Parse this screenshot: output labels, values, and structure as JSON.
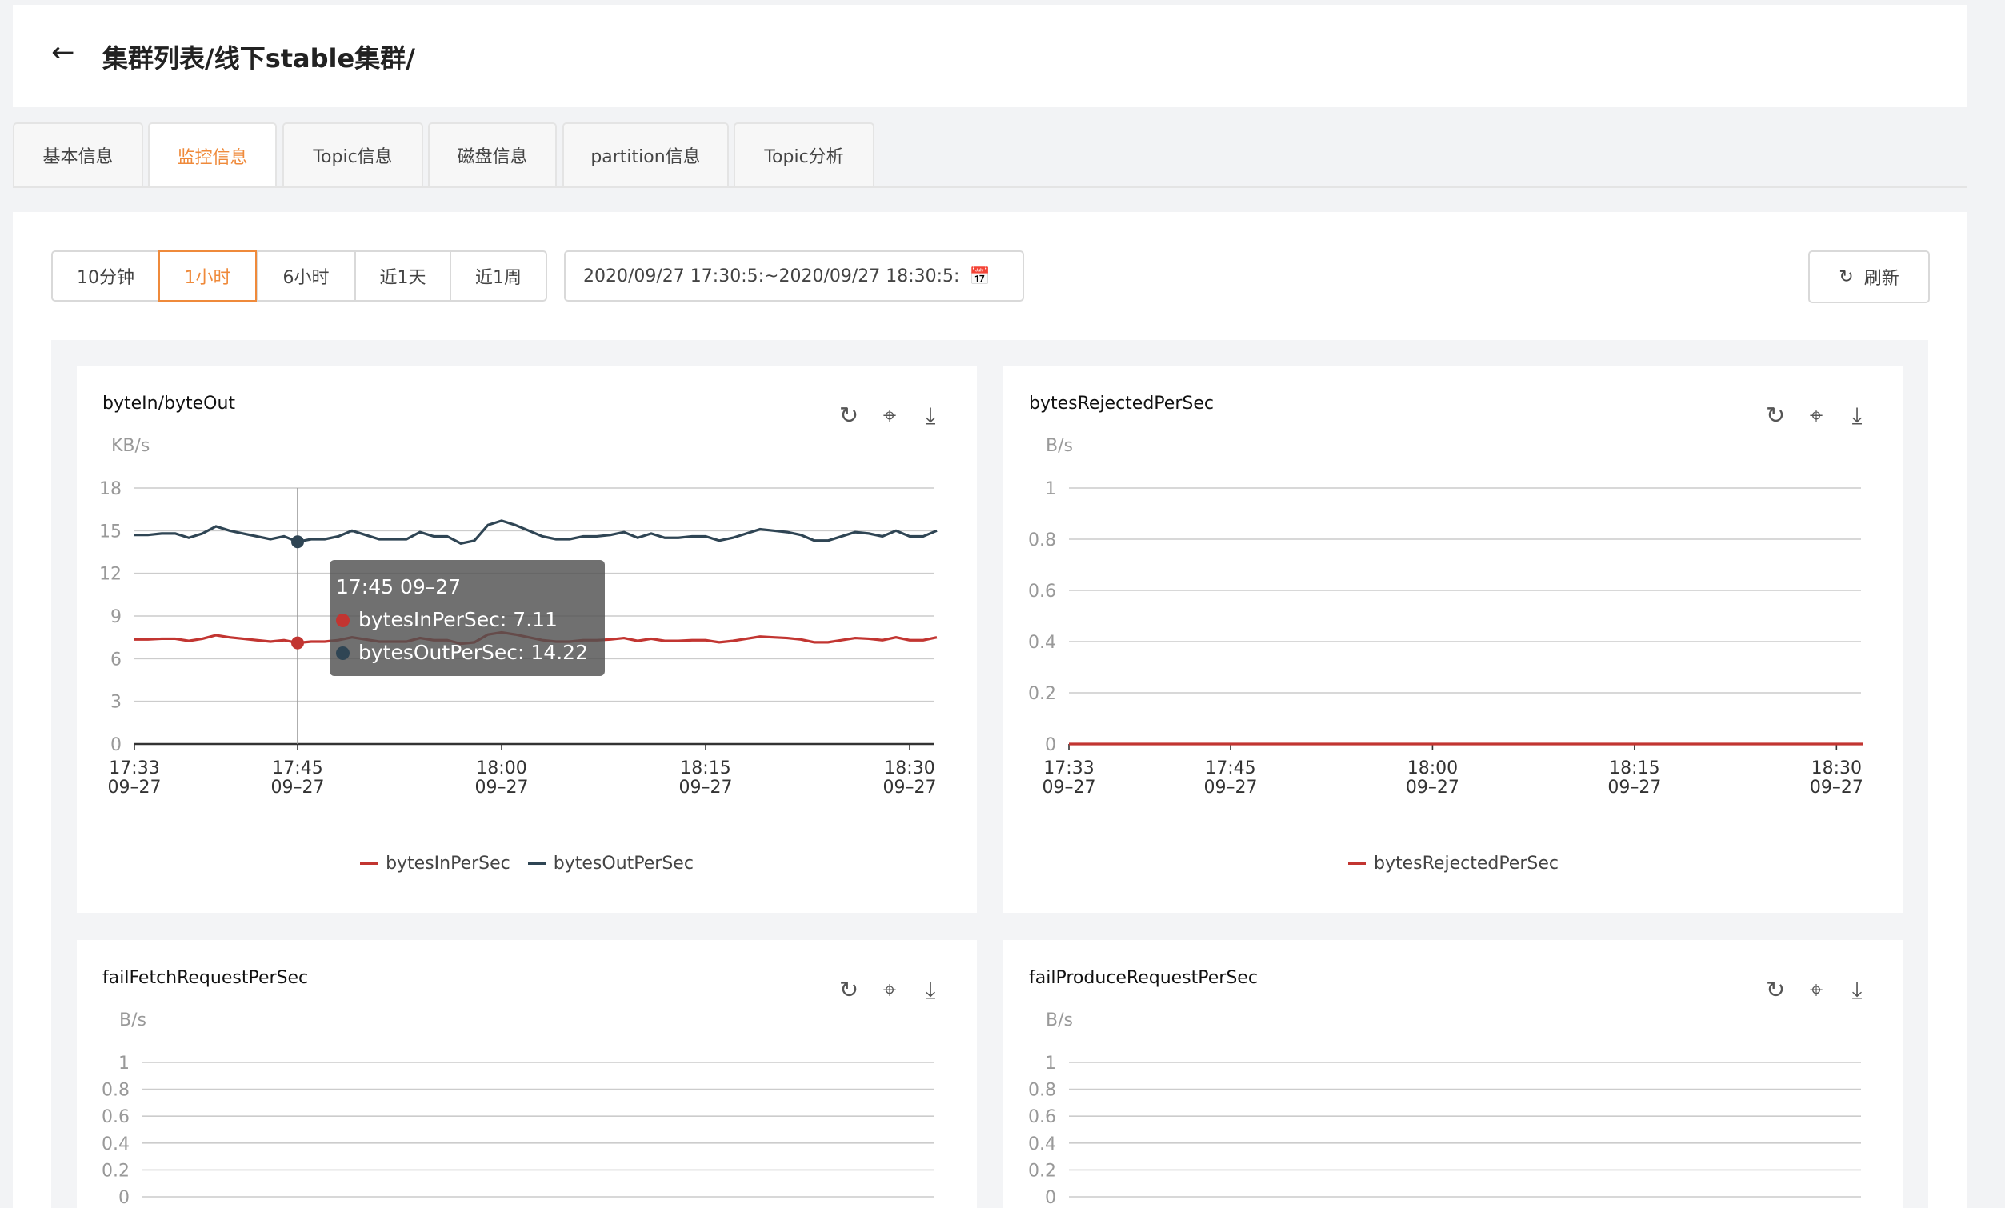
{
  "header": {
    "back_icon": "arrow-left-icon",
    "title": "集群列表/线下stable集群/"
  },
  "tabs": [
    {
      "label": "基本信息"
    },
    {
      "label": "监控信息",
      "active": true
    },
    {
      "label": "Topic信息"
    },
    {
      "label": "磁盘信息"
    },
    {
      "label": "partition信息"
    },
    {
      "label": "Topic分析"
    }
  ],
  "toolbar": {
    "ranges": [
      "10分钟",
      "1小时",
      "6小时",
      "近1天",
      "近1周"
    ],
    "active_range": "1小时",
    "date_range": "2020/09/27 17:30:5⁣~ 2020/09/27 18:30:5",
    "date_start": "2020/09/27 17:30:5:",
    "date_sep": "~",
    "date_end": "2020/09/27 18:30:5:",
    "calendar_icon": "calendar-icon",
    "refresh_label": "刷新",
    "refresh_icon": "refresh-icon"
  },
  "accent": "#ef8a3b",
  "card_icons": [
    "refresh-icon",
    "fullscreen-icon",
    "download-icon"
  ],
  "tooltip": {
    "title": "17:45 09–27",
    "rows": [
      {
        "label": "bytesInPerSec: 7.11",
        "color": "#c23531"
      },
      {
        "label": "bytesOutPerSec: 14.22",
        "color": "#2f4554"
      }
    ]
  },
  "chart_data": [
    {
      "type": "line",
      "title": "byteIn/byteOut",
      "ylabel": "KB/s",
      "ylim": [
        0,
        18
      ],
      "yticks": [
        "0",
        "3",
        "6",
        "9",
        "12",
        "15",
        "18"
      ],
      "grid": true,
      "legend": "bottom",
      "xlim": [
        "17:33",
        "18:32"
      ],
      "xticks": [
        {
          "t": "17:33",
          "d": "09–27"
        },
        {
          "t": "17:45",
          "d": "09–27"
        },
        {
          "t": "18:00",
          "d": "09–27"
        },
        {
          "t": "18:15",
          "d": "09–27"
        },
        {
          "t": "18:30",
          "d": "09–27"
        }
      ],
      "x": [
        "17:33",
        "17:34",
        "17:35",
        "17:36",
        "17:37",
        "17:38",
        "17:39",
        "17:40",
        "17:41",
        "17:42",
        "17:43",
        "17:44",
        "17:45",
        "17:46",
        "17:47",
        "17:48",
        "17:49",
        "17:50",
        "17:51",
        "17:52",
        "17:53",
        "17:54",
        "17:55",
        "17:56",
        "17:57",
        "17:58",
        "17:59",
        "18:00",
        "18:01",
        "18:02",
        "18:03",
        "18:04",
        "18:05",
        "18:06",
        "18:07",
        "18:08",
        "18:09",
        "18:10",
        "18:11",
        "18:12",
        "18:13",
        "18:14",
        "18:15",
        "18:16",
        "18:17",
        "18:18",
        "18:19",
        "18:20",
        "18:21",
        "18:22",
        "18:23",
        "18:24",
        "18:25",
        "18:26",
        "18:27",
        "18:28",
        "18:29",
        "18:30",
        "18:31",
        "18:32"
      ],
      "series": [
        {
          "name": "bytesInPerSec",
          "color": "#c23531",
          "values": [
            7.35,
            7.35,
            7.4,
            7.4,
            7.25,
            7.4,
            7.65,
            7.5,
            7.4,
            7.3,
            7.2,
            7.3,
            7.11,
            7.2,
            7.2,
            7.3,
            7.5,
            7.35,
            7.2,
            7.2,
            7.2,
            7.45,
            7.3,
            7.3,
            7.05,
            7.15,
            7.7,
            7.85,
            7.7,
            7.5,
            7.3,
            7.2,
            7.2,
            7.3,
            7.3,
            7.35,
            7.45,
            7.25,
            7.4,
            7.25,
            7.25,
            7.3,
            7.3,
            7.15,
            7.25,
            7.4,
            7.55,
            7.5,
            7.45,
            7.35,
            7.15,
            7.15,
            7.3,
            7.45,
            7.4,
            7.3,
            7.5,
            7.3,
            7.3,
            7.5
          ]
        },
        {
          "name": "bytesOutPerSec",
          "color": "#2f4554",
          "values": [
            14.7,
            14.7,
            14.8,
            14.8,
            14.5,
            14.8,
            15.3,
            15.0,
            14.8,
            14.6,
            14.4,
            14.6,
            14.22,
            14.4,
            14.4,
            14.6,
            15.0,
            14.7,
            14.4,
            14.4,
            14.4,
            14.9,
            14.6,
            14.6,
            14.1,
            14.3,
            15.4,
            15.7,
            15.4,
            15.0,
            14.6,
            14.4,
            14.4,
            14.6,
            14.6,
            14.7,
            14.9,
            14.5,
            14.8,
            14.5,
            14.5,
            14.6,
            14.6,
            14.3,
            14.5,
            14.8,
            15.1,
            15.0,
            14.9,
            14.7,
            14.3,
            14.3,
            14.6,
            14.9,
            14.8,
            14.6,
            15.0,
            14.6,
            14.6,
            15.0
          ]
        }
      ]
    },
    {
      "type": "line",
      "title": "bytesRejectedPerSec",
      "ylabel": "B/s",
      "ylim": [
        0,
        1
      ],
      "yticks": [
        "0",
        "0.2",
        "0.4",
        "0.6",
        "0.8",
        "1"
      ],
      "grid": true,
      "legend": "bottom",
      "xlim": [
        "17:33",
        "18:32"
      ],
      "xticks": [
        {
          "t": "17:33",
          "d": "09–27"
        },
        {
          "t": "17:45",
          "d": "09–27"
        },
        {
          "t": "18:00",
          "d": "09–27"
        },
        {
          "t": "18:15",
          "d": "09–27"
        },
        {
          "t": "18:30",
          "d": "09–27"
        }
      ],
      "x": [
        "17:33",
        "18:32"
      ],
      "series": [
        {
          "name": "bytesRejectedPerSec",
          "color": "#c23531",
          "values": [
            0,
            0
          ]
        }
      ]
    },
    {
      "type": "line",
      "title": "failFetchRequestPerSec",
      "ylabel": "B/s",
      "ylim": [
        0,
        1
      ],
      "yticks": [
        "0",
        "0.2",
        "0.4",
        "0.6",
        "0.8",
        "1"
      ],
      "grid": true,
      "series": []
    },
    {
      "type": "line",
      "title": "failProduceRequestPerSec",
      "ylabel": "B/s",
      "ylim": [
        0,
        1
      ],
      "yticks": [
        "0",
        "0.2",
        "0.4",
        "0.6",
        "0.8",
        "1"
      ],
      "grid": true,
      "series": []
    }
  ]
}
